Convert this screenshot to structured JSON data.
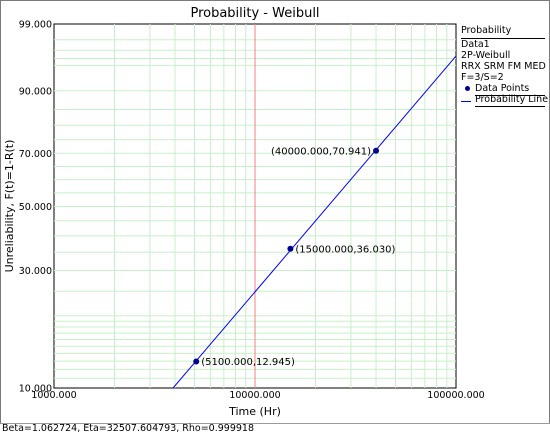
{
  "chart_data": {
    "type": "scatter",
    "title": "Probability - Weibull",
    "xlabel": "Time (Hr)",
    "ylabel": "Unreliability, F(t)=1-R(t)",
    "x_scale": "log",
    "y_scale": "weibull-probability",
    "xlim": [
      1000,
      100000
    ],
    "ylim": [
      10,
      99
    ],
    "x_tick_labels": [
      {
        "value": 1000,
        "label": "1000.000"
      },
      {
        "value": 10000,
        "label": "10000.000"
      },
      {
        "value": 100000,
        "label": "100000.000"
      }
    ],
    "y_tick_labels": [
      {
        "value": 10,
        "label": "10.000"
      },
      {
        "value": 30,
        "label": "30.000"
      },
      {
        "value": 50,
        "label": "50.000"
      },
      {
        "value": 70,
        "label": "70.000"
      },
      {
        "value": 90,
        "label": "90.000"
      },
      {
        "value": 99,
        "label": "99.000"
      }
    ],
    "series": [
      {
        "name": "Data Points",
        "kind": "points",
        "color": "#00008b",
        "points": [
          {
            "x": 5100,
            "y": 12.945,
            "label": "(5100.000,12.945)"
          },
          {
            "x": 15000,
            "y": 36.03,
            "label": "(15000.000,36.030)"
          },
          {
            "x": 40000,
            "y": 70.941,
            "label": "(40000.000,70.941)"
          }
        ]
      },
      {
        "name": "Probability Line",
        "kind": "line",
        "color": "#0000ff",
        "beta": 1.062724,
        "eta": 32507.604793
      }
    ],
    "reference_line": {
      "x": 10000,
      "color": "#f08080"
    },
    "grid": true,
    "grid_color": "#c8f0c8",
    "legend": {
      "position": "right",
      "title": "Probability",
      "lines": [
        "Data1",
        "2P-Weibull",
        "RRX SRM FM MED",
        "F=3/S=2"
      ],
      "entries": [
        "Data Points",
        "Probability Line"
      ]
    }
  },
  "footer": {
    "text": "Beta=1.062724, Eta=32507.604793, Rho=0.999918"
  }
}
